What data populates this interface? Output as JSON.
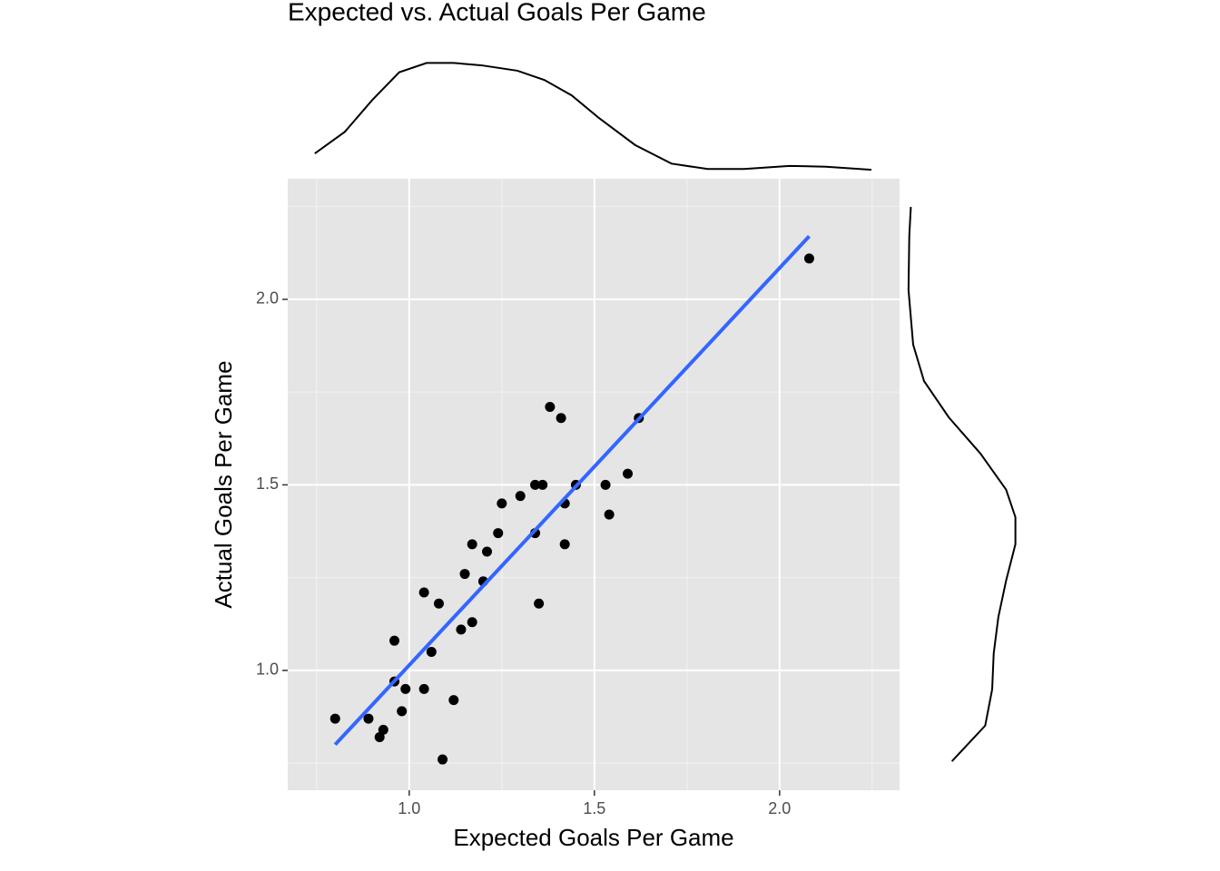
{
  "chart_data": {
    "type": "scatter",
    "title": "Expected vs. Actual Goals Per Game",
    "x_label": "Expected Goals Per Game",
    "y_label": "Actual Goals Per Game",
    "x": [
      0.8,
      0.89,
      0.92,
      0.93,
      0.96,
      0.96,
      0.98,
      0.99,
      1.04,
      1.04,
      1.06,
      1.08,
      1.09,
      1.12,
      1.14,
      1.15,
      1.17,
      1.17,
      1.2,
      1.21,
      1.24,
      1.25,
      1.3,
      1.34,
      1.34,
      1.35,
      1.36,
      1.38,
      1.41,
      1.42,
      1.42,
      1.45,
      1.53,
      1.54,
      1.59,
      1.62,
      2.08
    ],
    "y": [
      0.87,
      0.87,
      0.82,
      0.84,
      1.08,
      0.97,
      0.89,
      0.95,
      1.21,
      0.95,
      1.05,
      1.18,
      0.76,
      0.92,
      1.11,
      1.26,
      1.34,
      1.13,
      1.24,
      1.32,
      1.37,
      1.45,
      1.47,
      1.5,
      1.37,
      1.18,
      1.5,
      1.71,
      1.68,
      1.45,
      1.34,
      1.5,
      1.5,
      1.42,
      1.53,
      1.68,
      2.11
    ],
    "color": "#000000",
    "trend": {
      "x": [
        0.8,
        2.08
      ],
      "y": [
        0.8,
        2.17
      ],
      "color": "#3366ff"
    },
    "xlim": [
      0.672,
      2.324
    ],
    "ylim": [
      0.677,
      2.325
    ],
    "xticks": [
      {
        "value": 1.0,
        "label": "1.0"
      },
      {
        "value": 1.5,
        "label": "1.5"
      },
      {
        "value": 2.0,
        "label": "2.0"
      }
    ],
    "yticks": [
      {
        "value": 1.0,
        "label": "1.0"
      },
      {
        "value": 1.5,
        "label": "1.5"
      },
      {
        "value": 2.0,
        "label": "2.0"
      }
    ],
    "xminor": [
      0.75,
      1.25,
      1.75,
      2.25
    ],
    "yminor": [
      0.75,
      1.25,
      1.75,
      2.25
    ],
    "grid": true,
    "density_lim": [
      0,
      1.5
    ],
    "x_density": {
      "x": [
        0.745,
        0.826,
        0.9,
        0.973,
        1.047,
        1.12,
        1.194,
        1.292,
        1.365,
        1.439,
        1.512,
        1.61,
        1.708,
        1.806,
        1.904,
        2.027,
        2.125,
        2.248
      ],
      "density": [
        0.22,
        0.5,
        0.91,
        1.27,
        1.39,
        1.39,
        1.36,
        1.29,
        1.17,
        0.97,
        0.68,
        0.33,
        0.09,
        0.02,
        0.02,
        0.06,
        0.05,
        0.01
      ]
    },
    "y_density": {
      "y": [
        0.755,
        0.851,
        0.949,
        1.046,
        1.144,
        1.242,
        1.34,
        1.413,
        1.487,
        1.584,
        1.682,
        1.78,
        1.878,
        2.025,
        2.171,
        2.249
      ],
      "density": [
        0.57,
        1.0,
        1.09,
        1.11,
        1.17,
        1.27,
        1.39,
        1.39,
        1.27,
        0.94,
        0.53,
        0.21,
        0.07,
        0.01,
        0.02,
        0.04
      ]
    }
  }
}
